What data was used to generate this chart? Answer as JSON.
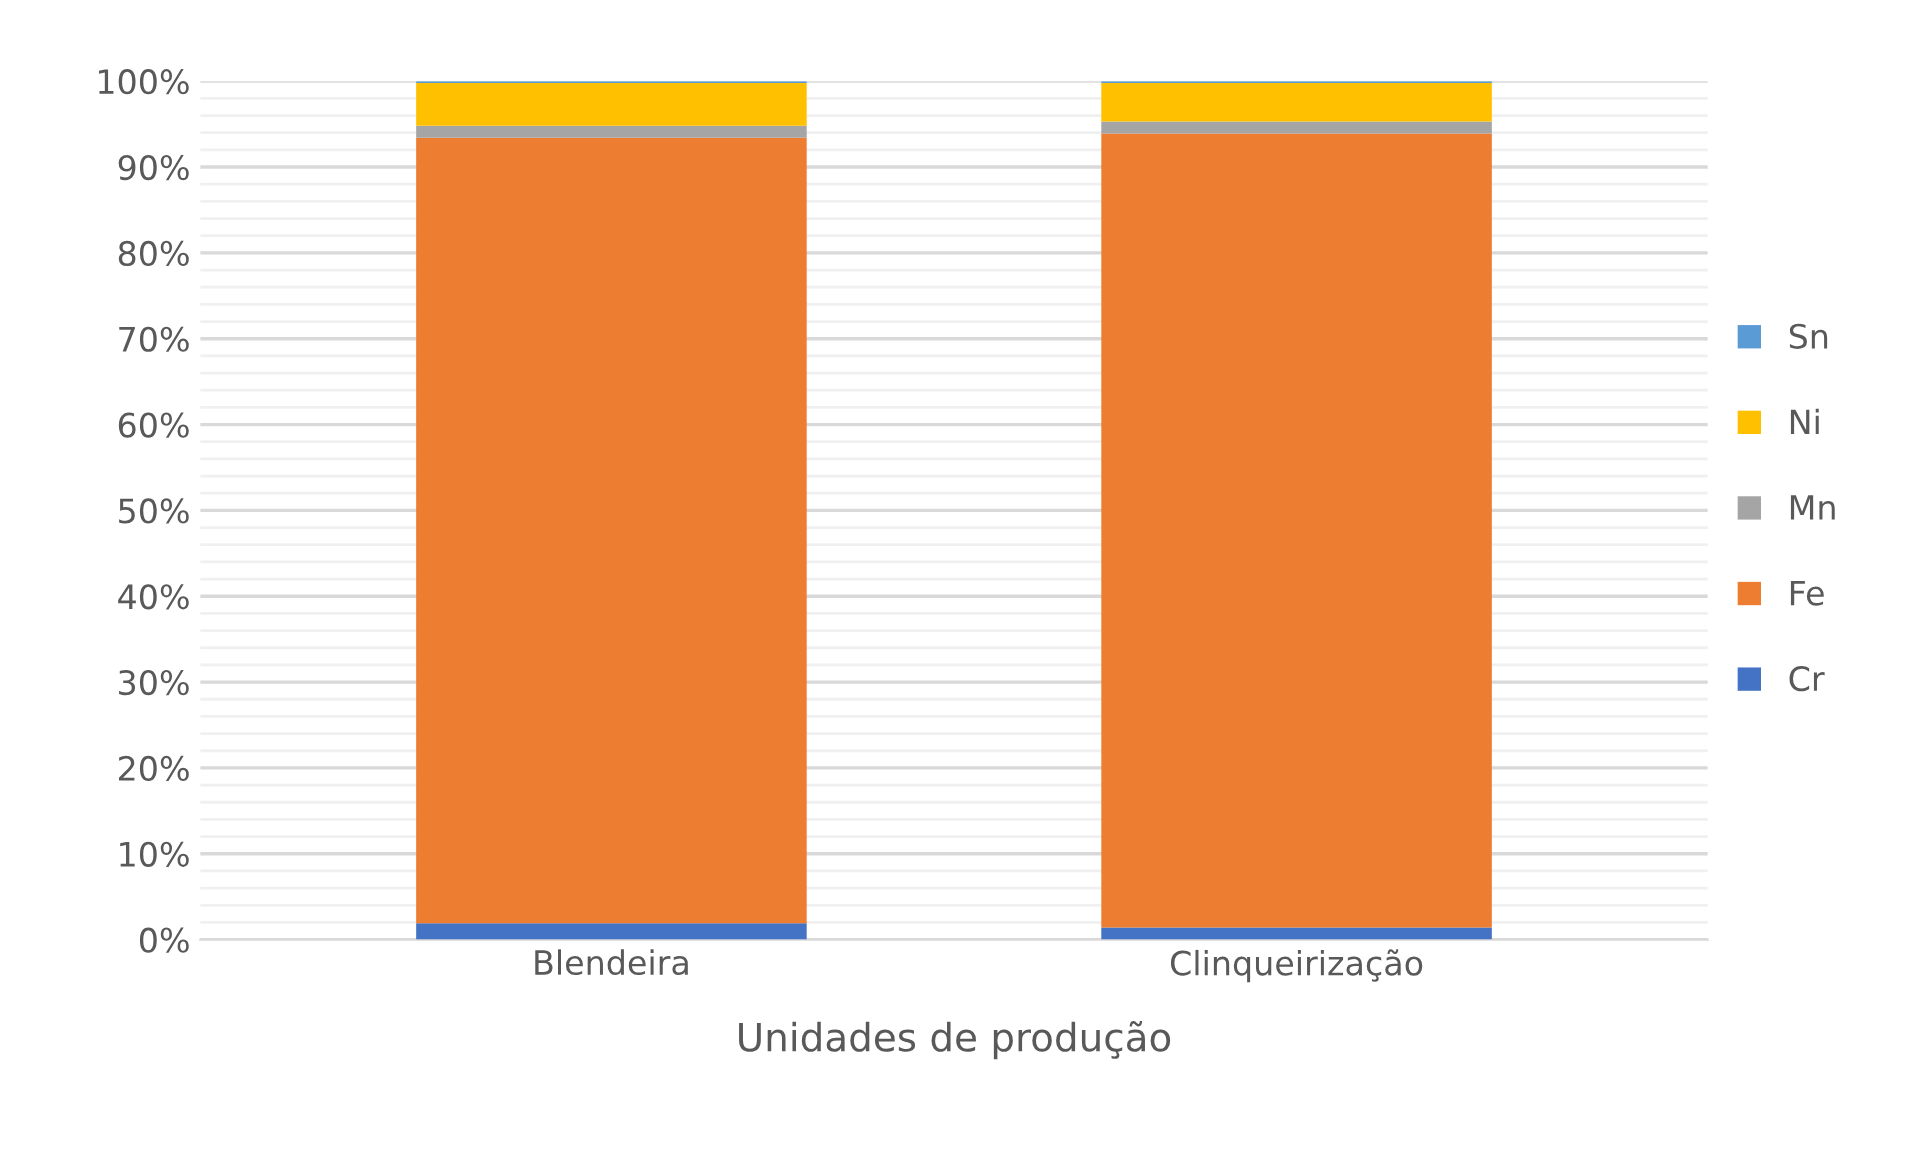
{
  "chart_data": {
    "type": "bar",
    "stacked": true,
    "xlabel": "Unidades de produção",
    "categories": [
      "Blendeira",
      "Clinqueirização"
    ],
    "series": [
      {
        "name": "Cr",
        "color": "#4472c4",
        "values": [
          1.9,
          1.4
        ]
      },
      {
        "name": "Fe",
        "color": "#ed7d31",
        "values": [
          91.5,
          92.5
        ]
      },
      {
        "name": "Mn",
        "color": "#a5a5a5",
        "values": [
          1.4,
          1.4
        ]
      },
      {
        "name": "Ni",
        "color": "#ffc000",
        "values": [
          5.0,
          4.5
        ]
      },
      {
        "name": "Sn",
        "color": "#5b9bd5",
        "values": [
          0.2,
          0.2
        ]
      }
    ],
    "ylim": [
      0,
      100
    ],
    "yticks": [
      {
        "value": 0,
        "label": "0%"
      },
      {
        "value": 10,
        "label": "10%"
      },
      {
        "value": 20,
        "label": "20%"
      },
      {
        "value": 30,
        "label": "30%"
      },
      {
        "value": 40,
        "label": "40%"
      },
      {
        "value": 50,
        "label": "50%"
      },
      {
        "value": 60,
        "label": "60%"
      },
      {
        "value": 70,
        "label": "70%"
      },
      {
        "value": 80,
        "label": "80%"
      },
      {
        "value": 90,
        "label": "90%"
      },
      {
        "value": 100,
        "label": "100%"
      }
    ],
    "grid": "y",
    "legend": "right"
  }
}
